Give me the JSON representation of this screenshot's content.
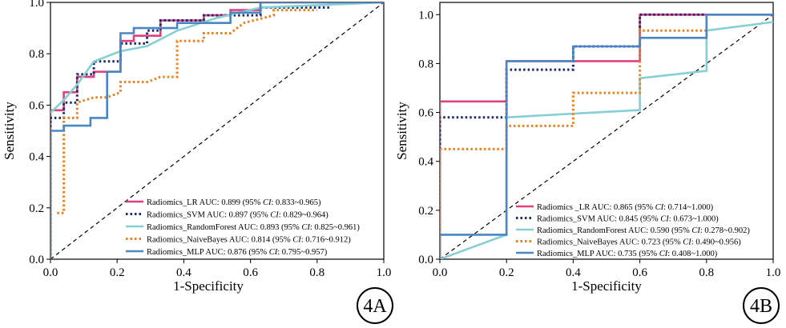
{
  "chart_data": [
    {
      "type": "line",
      "panel_label": "4A",
      "xlabel": "1-Specificity",
      "ylabel": "Sensitivity",
      "xlim": [
        0,
        1
      ],
      "ylim": [
        0,
        1
      ],
      "xticks": [
        "0.0",
        "0.2",
        "0.4",
        "0.6",
        "0.8",
        "1.0"
      ],
      "yticks": [
        "0.0",
        "0.2",
        "0.4",
        "0.6",
        "0.8",
        "1.0"
      ],
      "legend_position": "lower-right",
      "reference_line": true,
      "series": [
        {
          "name": "Radiomics_LR",
          "legend_parts": {
            "prefix": "Radiomics_LR AUC: 0.899 (95% ",
            "ci": "CI",
            "suffix": ": 0.833~0.965)"
          },
          "color": "#e0407e",
          "style": "solid",
          "x": [
            0,
            0,
            0.04,
            0.04,
            0.08,
            0.08,
            0.13,
            0.13,
            0.21,
            0.21,
            0.25,
            0.25,
            0.33,
            0.33,
            0.46,
            0.46,
            0.54,
            0.54,
            0.63,
            0.63,
            1.0
          ],
          "y": [
            0,
            0.58,
            0.58,
            0.65,
            0.65,
            0.71,
            0.71,
            0.73,
            0.73,
            0.85,
            0.85,
            0.87,
            0.87,
            0.93,
            0.93,
            0.95,
            0.95,
            0.97,
            0.97,
            1.0,
            1.0
          ]
        },
        {
          "name": "Radiomics_SVM",
          "legend_parts": {
            "prefix": "Radiomics_SVM AUC: 0.897 (95% ",
            "ci": "CI",
            "suffix": ": 0.829~0.964)"
          },
          "color": "#1a2a6c",
          "style": "dotted",
          "x": [
            0,
            0,
            0.04,
            0.04,
            0.08,
            0.08,
            0.13,
            0.13,
            0.21,
            0.21,
            0.29,
            0.29,
            0.33,
            0.33,
            0.46,
            0.46,
            0.63,
            0.63,
            0.84
          ],
          "y": [
            0,
            0.55,
            0.55,
            0.61,
            0.61,
            0.72,
            0.72,
            0.77,
            0.77,
            0.84,
            0.84,
            0.89,
            0.89,
            0.93,
            0.93,
            0.95,
            0.95,
            0.98,
            0.98
          ]
        },
        {
          "name": "Radiomics_RandomForest",
          "legend_parts": {
            "prefix": "Radiomics_RandomForest AUC: 0.893 (95% ",
            "ci": "CI",
            "suffix": ": 0.825~0.961)"
          },
          "color": "#86d0d3",
          "style": "solid",
          "x": [
            0,
            0.04,
            0.08,
            0.13,
            0.21,
            0.29,
            0.38,
            0.5,
            0.63,
            1.0
          ],
          "y": [
            0.57,
            0.62,
            0.68,
            0.77,
            0.81,
            0.83,
            0.89,
            0.94,
            0.98,
            1.0
          ]
        },
        {
          "name": "Radiomics_NaiveBayes",
          "legend_parts": {
            "prefix": "Radiomics_NaiveBayes AUC: 0.814 (95% ",
            "ci": "CI",
            "suffix": ": 0.716~0.912)"
          },
          "color": "#f07f1a",
          "style": "dotted",
          "x": [
            0.02,
            0.02,
            0.04,
            0.04,
            0.08,
            0.08,
            0.13,
            0.17,
            0.21,
            0.21,
            0.29,
            0.33,
            0.38,
            0.38,
            0.46,
            0.46,
            0.54,
            0.58,
            0.67,
            0.67,
            0.8
          ],
          "y": [
            0.18,
            0.18,
            0.18,
            0.55,
            0.55,
            0.61,
            0.63,
            0.63,
            0.65,
            0.69,
            0.69,
            0.71,
            0.71,
            0.85,
            0.85,
            0.88,
            0.88,
            0.92,
            0.95,
            0.97,
            0.97
          ]
        },
        {
          "name": "Radiomics_MLP",
          "legend_parts": {
            "prefix": "Radiomics_MLP AUC: 0.876 (95% ",
            "ci": "CI",
            "suffix": ": 0.795~0.957)"
          },
          "color": "#4a86c5",
          "style": "solid",
          "x": [
            0,
            0,
            0.04,
            0.04,
            0.12,
            0.12,
            0.17,
            0.17,
            0.21,
            0.21,
            0.25,
            0.25,
            0.38,
            0.38,
            0.54,
            0.54,
            0.63,
            0.63,
            1.0
          ],
          "y": [
            0,
            0.5,
            0.5,
            0.52,
            0.52,
            0.55,
            0.55,
            0.73,
            0.73,
            0.88,
            0.88,
            0.9,
            0.9,
            0.92,
            0.92,
            0.96,
            0.96,
            1.0,
            1.0
          ]
        }
      ]
    },
    {
      "type": "line",
      "panel_label": "4B",
      "xlabel": "1-Specificity",
      "ylabel": "Sensitivity",
      "xlim": [
        0,
        1
      ],
      "ylim": [
        0,
        1.05
      ],
      "xticks": [
        "0.0",
        "0.2",
        "0.4",
        "0.6",
        "0.8",
        "1.0"
      ],
      "yticks": [
        "0.0",
        "0.2",
        "0.4",
        "0.6",
        "0.8",
        "1.0"
      ],
      "legend_position": "lower-right",
      "reference_line": true,
      "series": [
        {
          "name": "Radiomics _LR",
          "legend_parts": {
            "prefix": "Radiomics _LR AUC: 0.865 (95% ",
            "ci": "CI",
            "suffix": ": 0.714~1.000)"
          },
          "color": "#e0407e",
          "style": "solid",
          "x": [
            0,
            0,
            0.2,
            0.2,
            0.6,
            0.6,
            1.0
          ],
          "y": [
            0,
            0.645,
            0.645,
            0.81,
            0.81,
            1.0,
            1.0
          ]
        },
        {
          "name": "Radiomics_SVM",
          "legend_parts": {
            "prefix": "Radiomics_SVM AUC: 0.845 (95% ",
            "ci": "CI",
            "suffix": ": 0.673~1.000)"
          },
          "color": "#1a2a6c",
          "style": "dotted",
          "x": [
            0,
            0,
            0.2,
            0.2,
            0.4,
            0.4,
            0.6,
            0.6,
            0.8
          ],
          "y": [
            0,
            0.58,
            0.58,
            0.775,
            0.775,
            0.87,
            0.87,
            1.0,
            1.0
          ]
        },
        {
          "name": "Radiomics_RandomForest",
          "legend_parts": {
            "prefix": "Radiomics_RandomForest AUC: 0.590 (95% ",
            "ci": "CI",
            "suffix": ": 0.278~0.902)"
          },
          "color": "#86d0d3",
          "style": "solid",
          "x": [
            0,
            0.2,
            0.2,
            0.6,
            0.6,
            0.8,
            0.8,
            1.0
          ],
          "y": [
            0,
            0.1,
            0.58,
            0.61,
            0.74,
            0.77,
            0.935,
            0.97
          ]
        },
        {
          "name": "Radiomics_NaiveBayes",
          "legend_parts": {
            "prefix": "Radiomics_NaiveBayes AUC: 0.723 (95% ",
            "ci": "CI",
            "suffix": ": 0.490~0.956)"
          },
          "color": "#f07f1a",
          "style": "dotted",
          "x": [
            0,
            0,
            0.2,
            0.2,
            0.4,
            0.4,
            0.6,
            0.6,
            0.8
          ],
          "y": [
            0,
            0.45,
            0.45,
            0.545,
            0.545,
            0.68,
            0.68,
            0.935,
            0.935
          ]
        },
        {
          "name": "Radiomics_MLP",
          "legend_parts": {
            "prefix": "Radiomics_MLP AUC: 0.735 (95% ",
            "ci": "CI",
            "suffix": ": 0.408~1.000)"
          },
          "color": "#4a86c5",
          "style": "solid",
          "x": [
            0,
            0,
            0.2,
            0.2,
            0.4,
            0.4,
            0.6,
            0.6,
            0.8,
            0.8,
            1.0
          ],
          "y": [
            0,
            0.1,
            0.1,
            0.81,
            0.81,
            0.87,
            0.87,
            0.905,
            0.905,
            1.0,
            1.0
          ]
        }
      ]
    }
  ]
}
